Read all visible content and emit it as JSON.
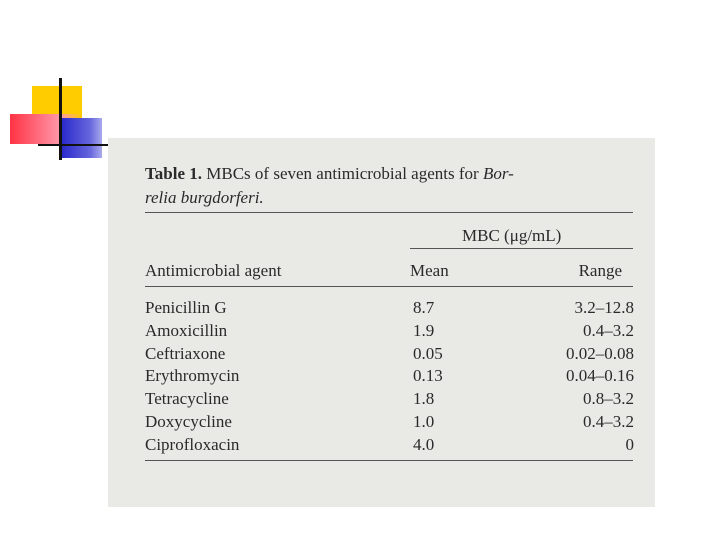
{
  "table": {
    "label": "Table 1.",
    "title_line1": "MBCs of seven antimicrobial agents for",
    "title_italic1": "Bor-",
    "title_line2": "relia burgdorferi.",
    "group_header": "MBC (μg/mL)",
    "columns": [
      "Antimicrobial agent",
      "Mean",
      "Range"
    ],
    "rows": [
      [
        "Penicillin G",
        "8.7",
        "3.2–12.8"
      ],
      [
        "Amoxicillin",
        "1.9",
        "0.4–3.2"
      ],
      [
        "Ceftriaxone",
        "0.05",
        "0.02–0.08"
      ],
      [
        "Erythromycin",
        "0.13",
        "0.04–0.16"
      ],
      [
        "Tetracycline",
        "1.8",
        "0.8–3.2"
      ],
      [
        "Doxycycline",
        "1.0",
        "0.4–3.2"
      ],
      [
        "Ciprofloxacin",
        "4.0",
        "0"
      ]
    ]
  }
}
